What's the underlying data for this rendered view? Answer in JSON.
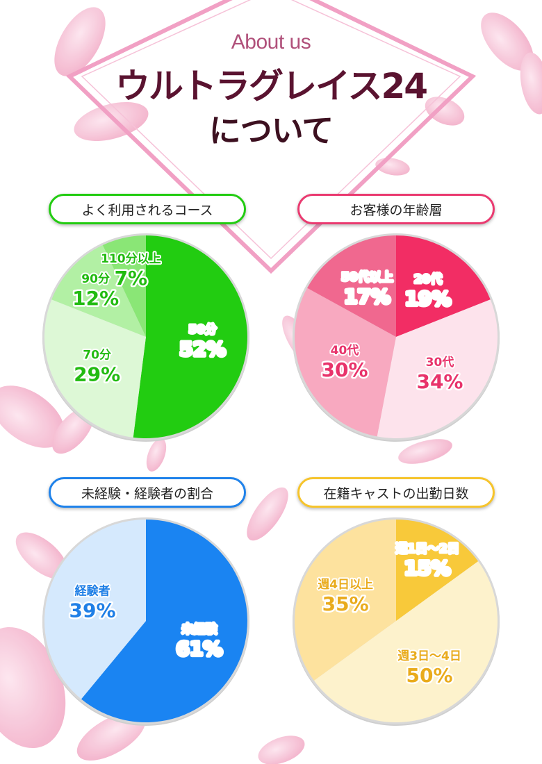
{
  "header": {
    "about": "About us",
    "title_line1": "ウルトラグレイス24",
    "title_line2": "について"
  },
  "colors": {
    "green": "#22cc11",
    "pink": "#ea3a70",
    "blue": "#1f82ea",
    "yellow": "#f6c42c",
    "diamond": "#f1a0c4"
  },
  "chart_data": [
    {
      "type": "pie",
      "title": "よく利用されるコース",
      "slices": [
        {
          "label": "50分",
          "value": 52,
          "display": "52%",
          "color": "#22cc11",
          "text_color": "#ffffff",
          "outline": "#1a9a0c"
        },
        {
          "label": "70分",
          "value": 29,
          "display": "29%",
          "color": "#ddf8d6",
          "text_color": "#22bb11",
          "outline": "#ffffff"
        },
        {
          "label": "90分",
          "value": 12,
          "display": "12%",
          "color": "#b2f0a4",
          "text_color": "#22bb11",
          "outline": "#ffffff"
        },
        {
          "label": "110分以上",
          "value": 7,
          "display": "7%",
          "color": "#8ae676",
          "text_color": "#22bb11",
          "outline": "#ffffff"
        }
      ]
    },
    {
      "type": "pie",
      "title": "お客様の年齢層",
      "slices": [
        {
          "label": "20代",
          "value": 19,
          "display": "19%",
          "color": "#f22d64",
          "text_color": "#ffffff",
          "outline": "#b8173f"
        },
        {
          "label": "30代",
          "value": 34,
          "display": "34%",
          "color": "#fde3ec",
          "text_color": "#e8336b",
          "outline": "#ffffff"
        },
        {
          "label": "40代",
          "value": 30,
          "display": "30%",
          "color": "#f8a9c0",
          "text_color": "#e8336b",
          "outline": "#ffffff"
        },
        {
          "label": "50代以上",
          "value": 17,
          "display": "17%",
          "color": "#f0688f",
          "text_color": "#ffffff",
          "outline": "#c2264f"
        }
      ]
    },
    {
      "type": "pie",
      "title": "未経験・経験者の割合",
      "slices": [
        {
          "label": "未経験",
          "value": 61,
          "display": "61%",
          "color": "#1a84f2",
          "text_color": "#ffffff",
          "outline": "#0b5fb8"
        },
        {
          "label": "経験者",
          "value": 39,
          "display": "39%",
          "color": "#d5e9fd",
          "text_color": "#1f7fe6",
          "outline": "#ffffff"
        }
      ]
    },
    {
      "type": "pie",
      "title": "在籍キャストの出勤日数",
      "slices": [
        {
          "label": "週1日～2日",
          "value": 15,
          "display": "15%",
          "color": "#f8c93a",
          "text_color": "#ffffff",
          "outline": "#d49a0e"
        },
        {
          "label": "週3日～4日",
          "value": 50,
          "display": "50%",
          "color": "#fdf2cc",
          "text_color": "#e9ab1c",
          "outline": "#ffffff"
        },
        {
          "label": "週4日以上",
          "value": 35,
          "display": "35%",
          "color": "#fde29e",
          "text_color": "#e9ab1c",
          "outline": "#ffffff"
        }
      ]
    }
  ]
}
